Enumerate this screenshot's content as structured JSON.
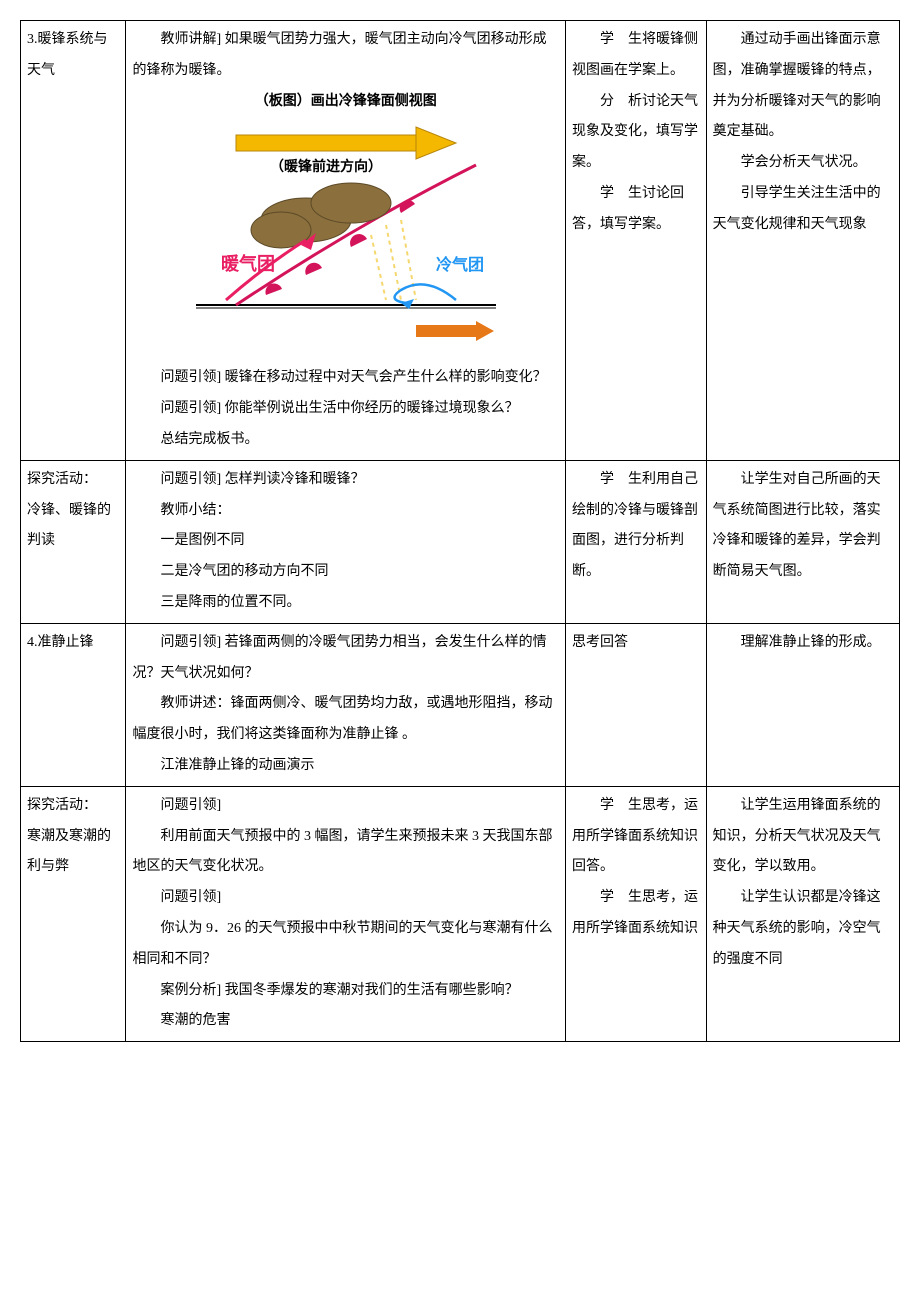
{
  "rows": [
    {
      "c1": [
        {
          "text": "3.暖锋系统与天气"
        }
      ],
      "c2": [
        {
          "text": "教师讲解] 如果暖气团势力强大，暖气团主动向冷气团移动形成的锋称为暖锋。",
          "indent": true
        },
        {
          "text": "（板图）画出冷锋锋面侧视图",
          "bold": true,
          "center": true
        },
        {
          "type": "diagram"
        },
        {
          "text": "问题引领] 暖锋在移动过程中对天气会产生什么样的影响变化？",
          "indent": true
        },
        {
          "text": "问题引领] 你能举例说出生活中你经历的暖锋过境现象么？",
          "indent": true
        },
        {
          "text": "总结完成板书。",
          "indent": true
        }
      ],
      "c3": [
        {
          "text": "学　生将暖锋侧视图画在学案上。",
          "indent": true
        },
        {
          "text": "分　析讨论天气现象及变化，填写学案。",
          "indent": true
        },
        {
          "text": "学　生讨论回答，填写学案。",
          "indent": true
        }
      ],
      "c4": [
        {
          "text": "通过动手画出锋面示意图，准确掌握暖锋的特点，并为分析暖锋对天气的影响奠定基础。",
          "indent": true
        },
        {
          "text": "学会分析天气状况。",
          "indent": true
        },
        {
          "text": "引导学生关注生活中的天气变化规律和天气现象",
          "indent": true
        }
      ]
    },
    {
      "c1": [
        {
          "text": "探究活动："
        },
        {
          "text": "冷锋、暖锋的判读"
        }
      ],
      "c2": [
        {
          "text": "问题引领] 怎样判读冷锋和暖锋？",
          "indent": true
        },
        {
          "text": "教师小结：",
          "indent": true
        },
        {
          "text": "一是图例不同",
          "indent": true
        },
        {
          "text": "二是冷气团的移动方向不同",
          "indent": true
        },
        {
          "text": "三是降雨的位置不同。",
          "indent": true
        }
      ],
      "c3": [
        {
          "text": "学　生利用自己绘制的冷锋与暖锋剖面图，进行分析判断。",
          "indent": true
        }
      ],
      "c4": [
        {
          "text": "让学生对自己所画的天气系统简图进行比较，落实冷锋和暖锋的差异，学会判断简易天气图。",
          "indent": true
        }
      ]
    },
    {
      "c1": [
        {
          "text": "4.准静止锋"
        }
      ],
      "c2": [
        {
          "text": "问题引领] 若锋面两侧的冷暖气团势力相当，会发生什么样的情况？天气状况如何？",
          "indent": true
        },
        {
          "text": "教师讲述：锋面两侧冷、暖气团势均力敌，或遇地形阻挡，移动幅度很小时，我们将这类锋面称为准静止锋 。",
          "indent": true
        },
        {
          "text": "江淮准静止锋的动画演示",
          "indent": true
        }
      ],
      "c3": [
        {
          "text": "思考回答"
        }
      ],
      "c4": [
        {
          "text": "理解准静止锋的形成。",
          "indent": true
        }
      ]
    },
    {
      "c1": [
        {
          "text": "探究活动："
        },
        {
          "text": "寒潮及寒潮的利与弊"
        }
      ],
      "c2": [
        {
          "text": "问题引领]",
          "indent": true
        },
        {
          "text": "利用前面天气预报中的 3 幅图，请学生来预报未来 3 天我国东部地区的天气变化状况。",
          "indent": true
        },
        {
          "text": "问题引领]",
          "indent": true
        },
        {
          "text": "你认为 9．26 的天气预报中中秋节期间的天气变化与寒潮有什么相同和不同？",
          "indent": true
        },
        {
          "text": "案例分析] 我国冬季爆发的寒潮对我们的生活有哪些影响？",
          "indent": true
        },
        {
          "text": "寒潮的危害",
          "indent": true
        }
      ],
      "c3": [
        {
          "text": "学　生思考，运用所学锋面系统知识回答。",
          "indent": true
        },
        {
          "text": "学　生思考，运用所学锋面系统知识",
          "indent": true
        }
      ],
      "c4": [
        {
          "text": "让学生运用锋面系统的知识，分析天气状况及天气变化，学以致用。",
          "indent": true
        },
        {
          "text": "让学生认识都是冷锋这种天气系统的影响，冷空气的强度不同",
          "indent": true
        }
      ]
    }
  ],
  "diagram": {
    "direction_label": "（暖锋前进方向）",
    "warm_label": "暖气团",
    "cold_label": "冷气团",
    "colors": {
      "arrow_yellow": "#f5b800",
      "arrow_outline": "#b8860b",
      "front_line": "#d4145a",
      "warm_text": "#e91e63",
      "cold_text": "#2196f3",
      "cloud_fill": "#8b6f3d",
      "cloud_stroke": "#5c4a28",
      "rain": "#f5d76e",
      "ground": "#000000",
      "bar_orange": "#e67817"
    }
  }
}
